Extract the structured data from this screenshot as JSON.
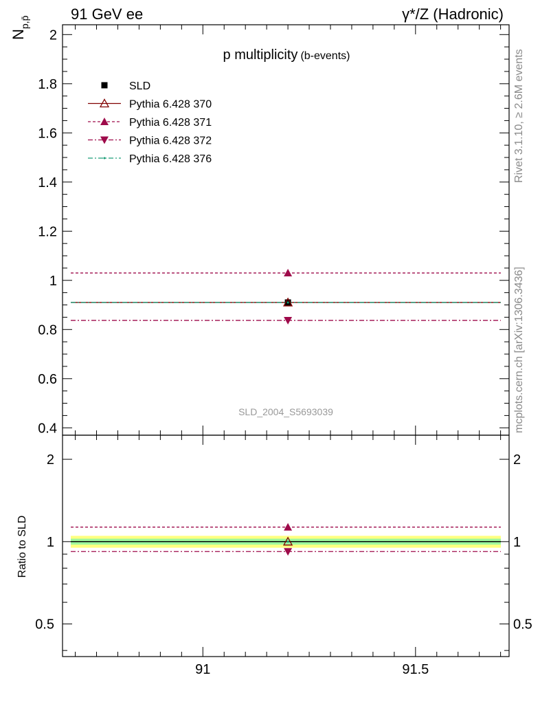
{
  "header": {
    "left": "91 GeV ee",
    "right": "γ*/Z (Hadronic)"
  },
  "side_labels": {
    "rivet": "Rivet 3.1.10, ≥ 2.6M events",
    "mcplots": "mcplots.cern.ch [arXiv:1306.3436]"
  },
  "chart_data": [
    {
      "type": "line",
      "title": "p multiplicity",
      "title_suffix": "(b-events)",
      "ylabel_main": "N",
      "ylabel_sub": "p,p̄",
      "watermark": "SLD_2004_S5693039",
      "xlim": [
        90.67,
        91.72
      ],
      "ylim": [
        0.37,
        2.04
      ],
      "yticks": [
        0.4,
        0.6,
        0.8,
        1,
        1.2,
        1.4,
        1.6,
        1.8,
        2
      ],
      "ytick_labels": [
        "0.4",
        "0.6",
        "0.8",
        "1",
        "1.2",
        "1.4",
        "1.6",
        "1.8",
        "2"
      ],
      "grid": false,
      "legend_position": "top-left",
      "series": [
        {
          "name": "SLD",
          "x": [
            91.2
          ],
          "y": [
            0.91
          ],
          "marker": "square",
          "color": "#000000",
          "line": "none"
        },
        {
          "name": "Pythia 6.428 370",
          "x": [
            91.2
          ],
          "y": [
            0.91
          ],
          "marker": "triangle-up-open",
          "color": "#800000",
          "line": "solid"
        },
        {
          "name": "Pythia 6.428 371",
          "x": [
            91.2
          ],
          "y": [
            1.03
          ],
          "marker": "triangle-up",
          "color": "#9e0a4a",
          "line": "dashed"
        },
        {
          "name": "Pythia 6.428 372",
          "x": [
            91.2
          ],
          "y": [
            0.837
          ],
          "marker": "triangle-down",
          "color": "#9e0a4a",
          "line": "dashdot"
        },
        {
          "name": "Pythia 6.428 376",
          "x": [
            91.2
          ],
          "y": [
            0.91
          ],
          "marker": "dot",
          "color": "#1b9e77",
          "line": "dashdot"
        }
      ]
    },
    {
      "type": "line",
      "ylabel": "Ratio to SLD",
      "xlim": [
        90.67,
        91.72
      ],
      "ylim": [
        0.38,
        2.45
      ],
      "yscale": "log",
      "yticks": [
        0.5,
        1,
        2
      ],
      "ytick_labels": [
        "0.5",
        "1",
        "2"
      ],
      "xticks": [
        91,
        91.5
      ],
      "xtick_labels": [
        "91",
        "91.5"
      ],
      "band_outer": [
        0.95,
        1.05
      ],
      "band_inner": [
        0.975,
        1.025
      ],
      "band_colors": {
        "outer": "#ffff80",
        "inner": "#9ef79e"
      },
      "series": [
        {
          "name": "Pythia 6.428 370",
          "y": [
            1.0
          ],
          "color": "#800000",
          "line": "solid"
        },
        {
          "name": "Pythia 6.428 371",
          "y": [
            1.13
          ],
          "color": "#9e0a4a",
          "line": "dashed"
        },
        {
          "name": "Pythia 6.428 372",
          "y": [
            0.92
          ],
          "color": "#9e0a4a",
          "line": "dashdot"
        },
        {
          "name": "Pythia 6.428 376",
          "y": [
            1.0
          ],
          "color": "#1b9e77",
          "line": "dashdot"
        }
      ]
    }
  ]
}
